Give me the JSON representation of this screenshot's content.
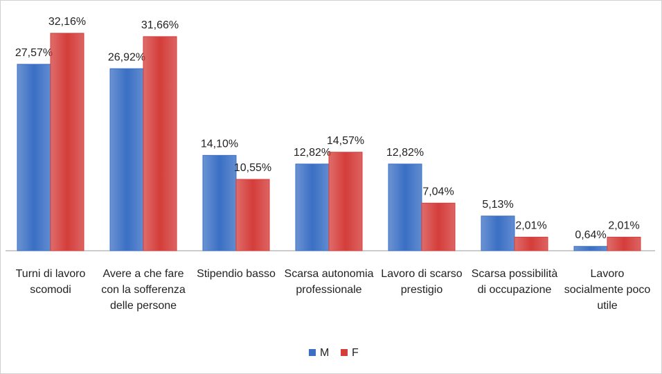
{
  "chart_data": {
    "type": "bar",
    "categories": [
      "Turni di lavoro scomodi",
      "Avere a che fare con la sofferenza delle persone",
      "Stipendio basso",
      "Scarsa autonomia professionale",
      "Lavoro di scarso prestigio",
      "Scarsa possibilità di occupazione",
      "Lavoro socialmente poco utile"
    ],
    "series": [
      {
        "name": "M",
        "color": "#3a6fc4",
        "values": [
          27.57,
          26.92,
          14.1,
          12.82,
          12.82,
          5.13,
          0.64
        ],
        "value_labels": [
          "27,57%",
          "26,92%",
          "14,10%",
          "12,82%",
          "12,82%",
          "5,13%",
          "0,64%"
        ]
      },
      {
        "name": "F",
        "color": "#d43d3a",
        "values": [
          32.16,
          31.66,
          10.55,
          14.57,
          7.04,
          2.01,
          2.01
        ],
        "value_labels": [
          "32,16%",
          "31,66%",
          "10,55%",
          "14,57%",
          "7,04%",
          "2,01%",
          "2,01%"
        ]
      }
    ],
    "legend": "bottom"
  }
}
